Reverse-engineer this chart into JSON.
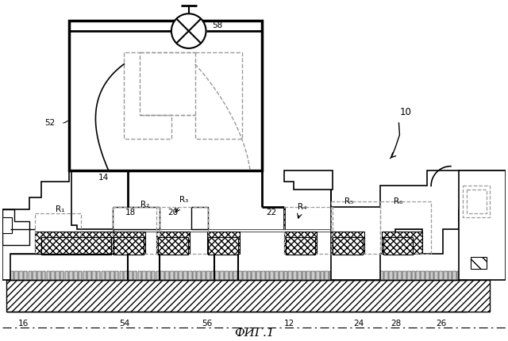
{
  "title": "ФИГ.1",
  "label_10": "10",
  "label_12": "12",
  "label_14": "14",
  "label_16": "16",
  "label_18": "18",
  "label_20": "20",
  "label_22": "22",
  "label_24": "24",
  "label_26": "26",
  "label_28": "28",
  "label_52": "52",
  "label_54": "54",
  "label_56": "56",
  "label_58": "58",
  "label_R1": "R₁",
  "label_R2": "R₂",
  "label_R3": "R₃",
  "label_R4": "R₄",
  "label_R5": "R₅",
  "label_R6": "R₆",
  "bg_color": "#ffffff",
  "line_color": "#000000",
  "dashed_color": "#999999"
}
